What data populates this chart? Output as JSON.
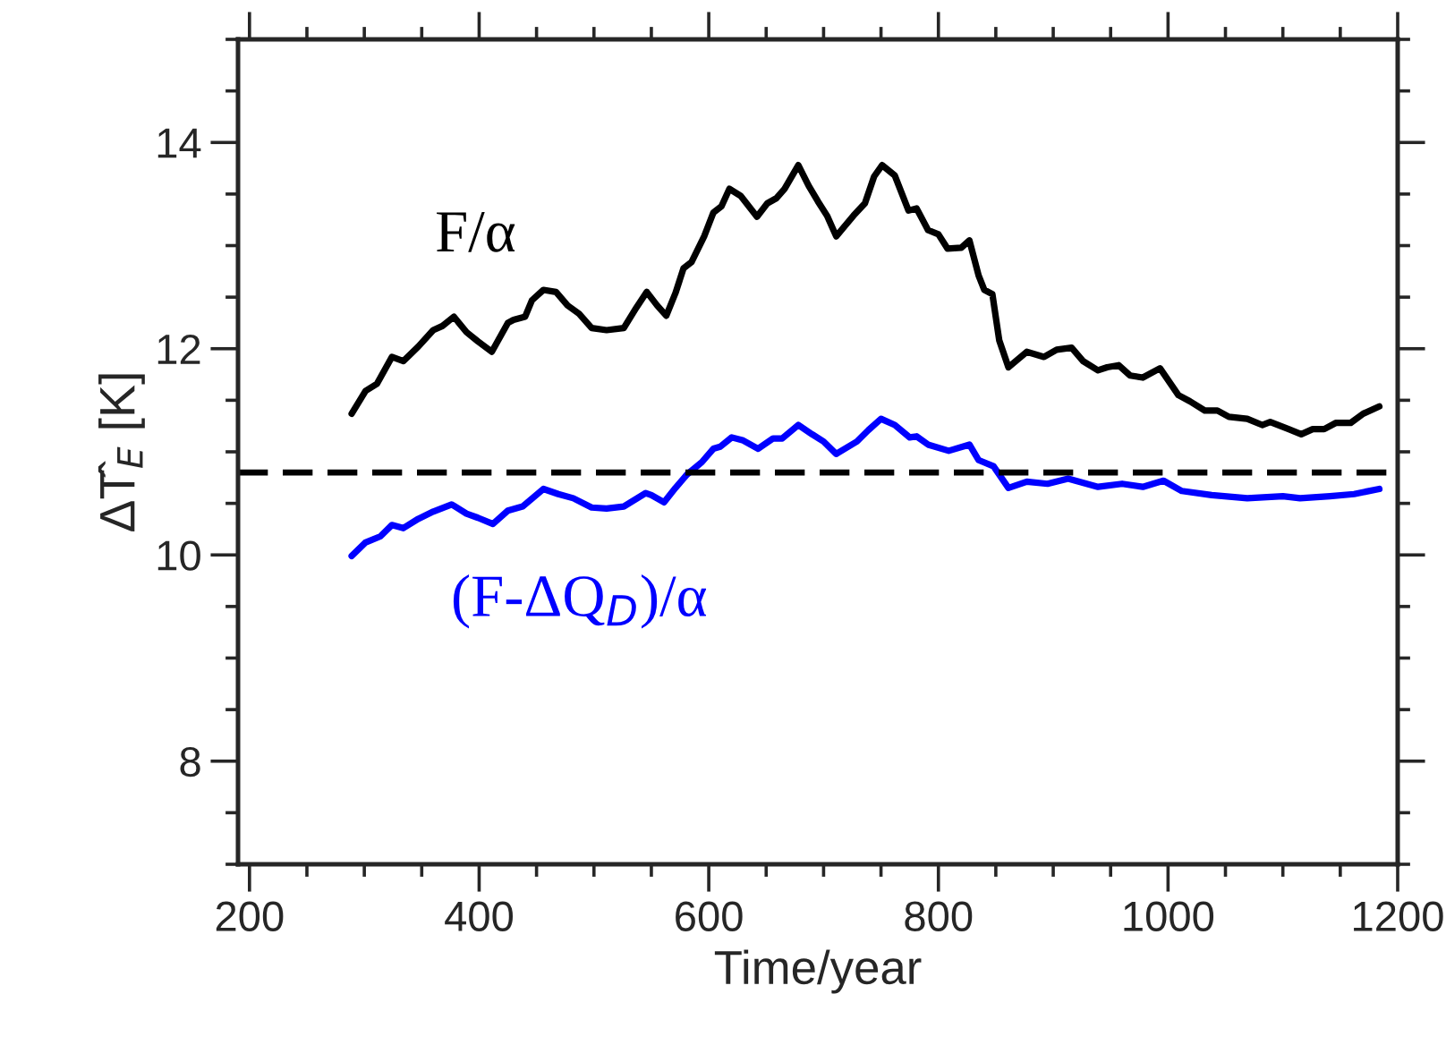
{
  "chart_data": {
    "type": "line",
    "xlabel": "Time/year",
    "ylabel": "ΔT̂$_{E}$ [K]",
    "xlim": [
      190,
      1200
    ],
    "ylim": [
      7,
      15
    ],
    "xticks": [
      200,
      400,
      600,
      800,
      1000,
      1200
    ],
    "yticks": [
      8,
      10,
      12,
      14
    ],
    "grid": false,
    "legend": false,
    "line_style": "solid",
    "marker": "none",
    "ref_lines": [
      {
        "axis": "y",
        "value": 10.8,
        "color": "#000000",
        "line_style": "dashed"
      }
    ],
    "series": [
      {
        "name": "F/α",
        "color": "#000000",
        "x": [
          289,
          301,
          311,
          324,
          334,
          347,
          360,
          368,
          378,
          389,
          399,
          411,
          425,
          430,
          440,
          446,
          456,
          467,
          477,
          487,
          498,
          511,
          526,
          537,
          546,
          555,
          563,
          571,
          578,
          585,
          596,
          604,
          611,
          618,
          628,
          642,
          651,
          659,
          666,
          678,
          687,
          695,
          703,
          711,
          726,
          736,
          744,
          751,
          762,
          774,
          781,
          791,
          800,
          808,
          820,
          827,
          835,
          840,
          847,
          853,
          861,
          877,
          892,
          903,
          916,
          926,
          939,
          947,
          957,
          967,
          978,
          993,
          1009,
          1019,
          1032,
          1043,
          1053,
          1069,
          1082,
          1089,
          1105,
          1116,
          1126,
          1136,
          1146,
          1159,
          1170,
          1184
        ],
        "values": [
          11.37,
          11.59,
          11.66,
          11.92,
          11.88,
          12.02,
          12.18,
          12.22,
          12.31,
          12.16,
          12.07,
          11.97,
          12.25,
          12.28,
          12.31,
          12.47,
          12.57,
          12.55,
          12.42,
          12.34,
          12.2,
          12.18,
          12.2,
          12.4,
          12.55,
          12.42,
          12.32,
          12.54,
          12.78,
          12.84,
          13.09,
          13.32,
          13.38,
          13.55,
          13.48,
          13.28,
          13.41,
          13.46,
          13.55,
          13.78,
          13.58,
          13.43,
          13.29,
          13.09,
          13.29,
          13.41,
          13.67,
          13.78,
          13.68,
          13.34,
          13.36,
          13.15,
          13.11,
          12.97,
          12.98,
          13.05,
          12.71,
          12.57,
          12.53,
          12.08,
          11.82,
          11.97,
          11.92,
          11.99,
          12.01,
          11.88,
          11.79,
          11.82,
          11.84,
          11.74,
          11.72,
          11.81,
          11.55,
          11.49,
          11.4,
          11.4,
          11.34,
          11.32,
          11.26,
          11.29,
          11.22,
          11.17,
          11.22,
          11.22,
          11.28,
          11.28,
          11.37,
          11.44
        ]
      },
      {
        "name": "(F-ΔQ$_{D}$)/α",
        "color": "#0000ff",
        "x": [
          289,
          301,
          314,
          324,
          334,
          347,
          360,
          376,
          389,
          399,
          412,
          425,
          438,
          456,
          469,
          482,
          498,
          511,
          526,
          545,
          550,
          561,
          571,
          581,
          594,
          604,
          610,
          620,
          630,
          643,
          656,
          664,
          678,
          690,
          700,
          711,
          729,
          739,
          750,
          762,
          775,
          781,
          791,
          809,
          827,
          835,
          848,
          861,
          877,
          895,
          913,
          939,
          960,
          978,
          996,
          1012,
          1038,
          1069,
          1100,
          1115,
          1141,
          1162,
          1184
        ],
        "values": [
          9.99,
          10.12,
          10.18,
          10.29,
          10.26,
          10.35,
          10.42,
          10.49,
          10.4,
          10.36,
          10.3,
          10.43,
          10.47,
          10.64,
          10.59,
          10.55,
          10.46,
          10.45,
          10.47,
          10.6,
          10.58,
          10.51,
          10.65,
          10.78,
          10.9,
          11.03,
          11.05,
          11.14,
          11.11,
          11.03,
          11.13,
          11.13,
          11.26,
          11.17,
          11.1,
          10.98,
          11.1,
          11.21,
          11.32,
          11.26,
          11.14,
          11.15,
          11.07,
          11.01,
          11.07,
          10.92,
          10.86,
          10.65,
          10.71,
          10.69,
          10.74,
          10.66,
          10.69,
          10.66,
          10.72,
          10.62,
          10.58,
          10.55,
          10.57,
          10.55,
          10.57,
          10.59,
          10.64
        ]
      }
    ]
  }
}
